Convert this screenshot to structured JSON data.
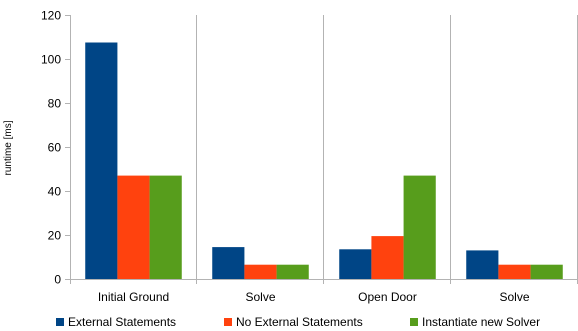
{
  "chart_data": {
    "type": "bar",
    "ylabel": "runtime [ms]",
    "xlabel": "",
    "ylim": [
      0,
      120
    ],
    "yticks": [
      0,
      20,
      40,
      60,
      80,
      100,
      120
    ],
    "grid": "vertical category separators",
    "legend_position": "bottom",
    "categories": [
      "Initial Ground",
      "Solve",
      "Open Door",
      "Solve"
    ],
    "series": [
      {
        "name": "External Statements",
        "color": "#004586",
        "values": [
          107.5,
          14.5,
          13.5,
          13.0
        ]
      },
      {
        "name": "No External Statements",
        "color": "#ff420e",
        "values": [
          47.0,
          6.5,
          19.5,
          6.5
        ]
      },
      {
        "name": "Instantiate new Solver",
        "color": "#579d1c",
        "values": [
          47.0,
          6.5,
          47.0,
          6.5
        ]
      }
    ]
  }
}
